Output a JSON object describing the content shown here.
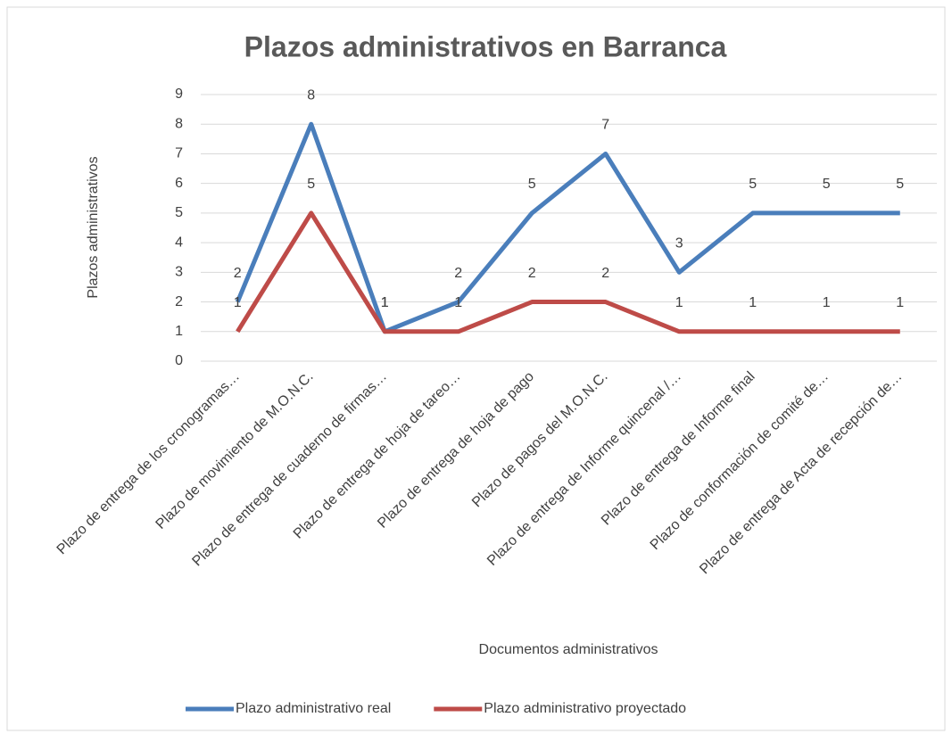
{
  "chart_data": {
    "type": "line",
    "title": "Plazos administrativos en Barranca",
    "x_label": "Documentos administrativos",
    "y_label": "Plazos administrativos",
    "categories": [
      "Plazo de entrega de los cronogramas…",
      "Plazo de movimiento de M.O.N.C.",
      "Plazo de entrega de cuaderno de firmas…",
      "Plazo de entrega de hoja de tareo…",
      "Plazo de entrega de hoja de pago",
      "Plazo de pagos del M.O.N.C.",
      "Plazo de entrega de Informe quincenal /…",
      "Plazo de entrega de Informe final",
      "Plazo de conformación de comité de…",
      "Plazo de entrega de Acta de recepción de…"
    ],
    "series": [
      {
        "name": "Plazo administrativo real",
        "color": "#4a7ebb",
        "values": [
          2,
          8,
          1,
          2,
          5,
          7,
          3,
          5,
          5,
          5
        ]
      },
      {
        "name": "Plazo administrativo proyectado",
        "color": "#be4b48",
        "values": [
          1,
          5,
          1,
          1,
          2,
          2,
          1,
          1,
          1,
          1
        ]
      }
    ],
    "ylim": [
      0,
      9
    ],
    "yticks": [
      0,
      1,
      2,
      3,
      4,
      5,
      6,
      7,
      8,
      9
    ],
    "grid": true,
    "legend": "bottom"
  }
}
